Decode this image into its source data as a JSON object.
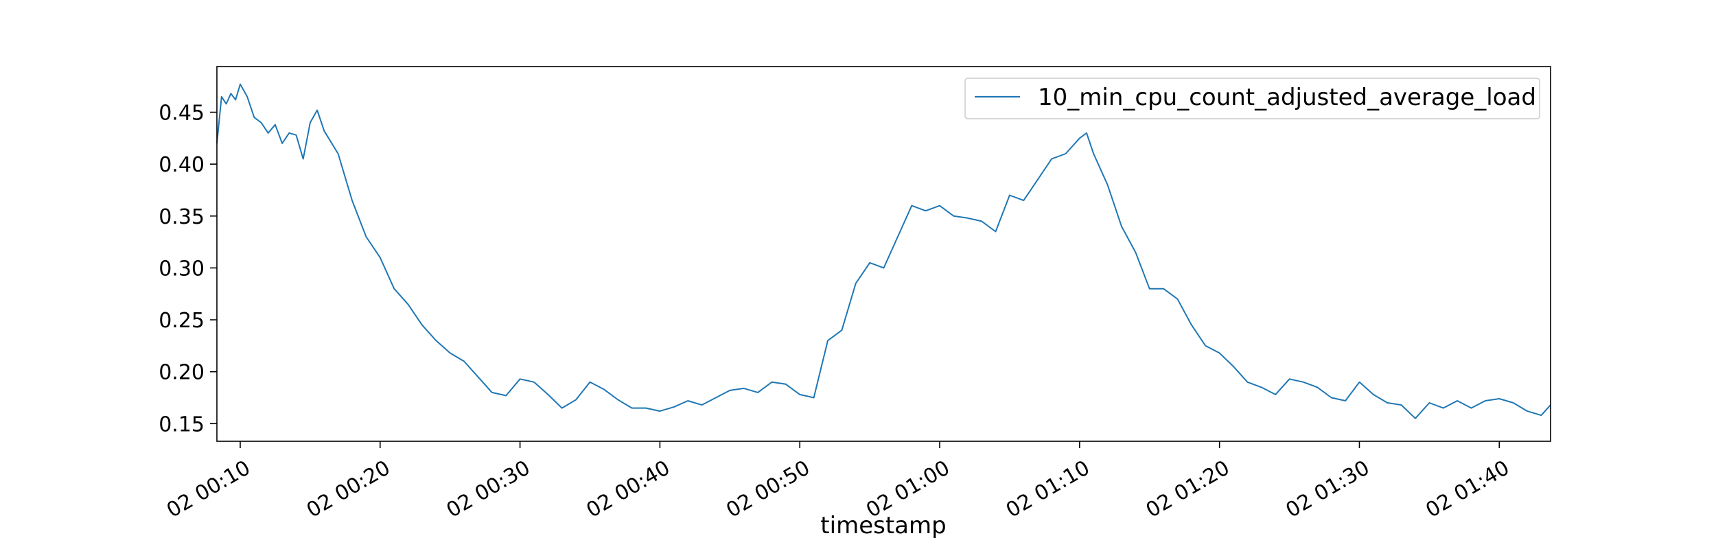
{
  "chart_data": {
    "type": "line",
    "title": "",
    "xlabel": "timestamp",
    "ylabel": "",
    "x_range": [
      "02 00:08:20",
      "02 01:43:40"
    ],
    "ylim": [
      0.133,
      0.494
    ],
    "grid": false,
    "legend_position": "top-right",
    "x_ticks": [
      "02 00:10",
      "02 00:20",
      "02 00:30",
      "02 00:40",
      "02 00:50",
      "02 01:00",
      "02 01:10",
      "02 01:20",
      "02 01:30",
      "02 01:40"
    ],
    "y_ticks": [
      "0.15",
      "0.20",
      "0.25",
      "0.30",
      "0.35",
      "0.40",
      "0.45"
    ],
    "series": [
      {
        "name": "10_min_cpu_count_adjusted_average_load",
        "color": "#1f77b4",
        "x": [
          "02 00:08:20",
          "02 00:08:40",
          "02 00:09:00",
          "02 00:09:20",
          "02 00:09:40",
          "02 00:10:00",
          "02 00:10:30",
          "02 00:11:00",
          "02 00:11:30",
          "02 00:12:00",
          "02 00:12:30",
          "02 00:13:00",
          "02 00:13:30",
          "02 00:14:00",
          "02 00:14:30",
          "02 00:15:00",
          "02 00:15:30",
          "02 00:16:00",
          "02 00:17:00",
          "02 00:18:00",
          "02 00:19:00",
          "02 00:20:00",
          "02 00:21:00",
          "02 00:22:00",
          "02 00:23:00",
          "02 00:24:00",
          "02 00:25:00",
          "02 00:26:00",
          "02 00:27:00",
          "02 00:28:00",
          "02 00:29:00",
          "02 00:30:00",
          "02 00:31:00",
          "02 00:32:00",
          "02 00:33:00",
          "02 00:34:00",
          "02 00:35:00",
          "02 00:36:00",
          "02 00:37:00",
          "02 00:38:00",
          "02 00:39:00",
          "02 00:40:00",
          "02 00:41:00",
          "02 00:42:00",
          "02 00:43:00",
          "02 00:44:00",
          "02 00:45:00",
          "02 00:46:00",
          "02 00:47:00",
          "02 00:48:00",
          "02 00:49:00",
          "02 00:50:00",
          "02 00:51:00",
          "02 00:52:00",
          "02 00:53:00",
          "02 00:54:00",
          "02 00:55:00",
          "02 00:56:00",
          "02 00:57:00",
          "02 00:58:00",
          "02 00:59:00",
          "02 01:00:00",
          "02 01:01:00",
          "02 01:02:00",
          "02 01:03:00",
          "02 01:04:00",
          "02 01:05:00",
          "02 01:06:00",
          "02 01:07:00",
          "02 01:08:00",
          "02 01:09:00",
          "02 01:10:00",
          "02 01:10:30",
          "02 01:11:00",
          "02 01:12:00",
          "02 01:13:00",
          "02 01:14:00",
          "02 01:15:00",
          "02 01:16:00",
          "02 01:17:00",
          "02 01:18:00",
          "02 01:19:00",
          "02 01:20:00",
          "02 01:21:00",
          "02 01:22:00",
          "02 01:23:00",
          "02 01:24:00",
          "02 01:25:00",
          "02 01:26:00",
          "02 01:27:00",
          "02 01:28:00",
          "02 01:29:00",
          "02 01:30:00",
          "02 01:31:00",
          "02 01:32:00",
          "02 01:33:00",
          "02 01:34:00",
          "02 01:35:00",
          "02 01:36:00",
          "02 01:37:00",
          "02 01:38:00",
          "02 01:39:00",
          "02 01:40:00",
          "02 01:41:00",
          "02 01:42:00",
          "02 01:43:00",
          "02 01:43:40"
        ],
        "y": [
          0.42,
          0.465,
          0.458,
          0.468,
          0.462,
          0.477,
          0.465,
          0.445,
          0.44,
          0.43,
          0.438,
          0.42,
          0.43,
          0.428,
          0.405,
          0.44,
          0.452,
          0.432,
          0.41,
          0.365,
          0.33,
          0.31,
          0.28,
          0.265,
          0.245,
          0.23,
          0.218,
          0.21,
          0.195,
          0.18,
          0.177,
          0.193,
          0.19,
          0.178,
          0.165,
          0.173,
          0.19,
          0.183,
          0.173,
          0.165,
          0.165,
          0.162,
          0.166,
          0.172,
          0.168,
          0.175,
          0.182,
          0.184,
          0.18,
          0.19,
          0.188,
          0.178,
          0.175,
          0.23,
          0.24,
          0.285,
          0.305,
          0.3,
          0.33,
          0.36,
          0.355,
          0.36,
          0.35,
          0.348,
          0.345,
          0.335,
          0.37,
          0.365,
          0.385,
          0.405,
          0.41,
          0.425,
          0.43,
          0.41,
          0.38,
          0.34,
          0.315,
          0.28,
          0.28,
          0.27,
          0.245,
          0.225,
          0.218,
          0.205,
          0.19,
          0.185,
          0.178,
          0.193,
          0.19,
          0.185,
          0.175,
          0.172,
          0.19,
          0.178,
          0.17,
          0.168,
          0.155,
          0.17,
          0.165,
          0.172,
          0.165,
          0.172,
          0.174,
          0.17,
          0.162,
          0.158,
          0.168
        ]
      }
    ]
  }
}
